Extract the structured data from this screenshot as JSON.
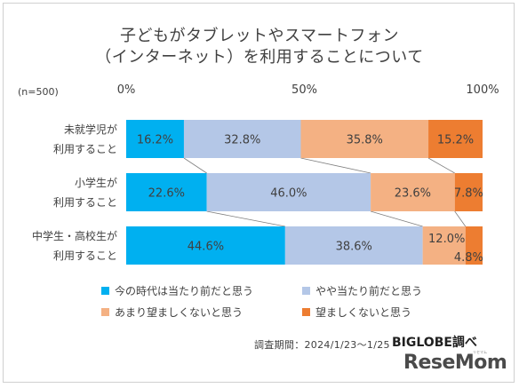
{
  "title": {
    "line1": "子どもがタブレットやスマートフォン",
    "line2": "（インターネット）を利用することについて"
  },
  "sample": "(n=500)",
  "source": "調査期間：2024/1/23〜1/25",
  "brand": "BIGLOBE調べ",
  "logo": "ReseMom",
  "logo_ruby": "リセマム",
  "chart_data": {
    "type": "bar",
    "orientation": "horizontal",
    "stacked": true,
    "percent": true,
    "xlim": [
      0,
      100
    ],
    "ticks": [
      "0%",
      "50%",
      "100%"
    ],
    "tick_values": [
      0,
      50,
      100
    ],
    "categories": [
      [
        "未就学児が",
        "利用すること"
      ],
      [
        "小学生が",
        "利用すること"
      ],
      [
        "中学生・高校生が",
        "利用すること"
      ]
    ],
    "series": [
      {
        "name": "今の時代は当たり前だと思う",
        "color": "#00b0f0",
        "values": [
          16.2,
          22.6,
          44.6
        ],
        "labels": [
          "16.2%",
          "22.6%",
          "44.6%"
        ]
      },
      {
        "name": "やや当たり前だと思う",
        "color": "#b4c7e7",
        "values": [
          32.8,
          46.0,
          38.6
        ],
        "labels": [
          "32.8%",
          "46.0%",
          "38.6%"
        ]
      },
      {
        "name": "あまり望ましくないと思う",
        "color": "#f4b183",
        "values": [
          35.8,
          23.6,
          12.0
        ],
        "labels": [
          "35.8%",
          "23.6%",
          "12.0%"
        ]
      },
      {
        "name": "望ましくないと思う",
        "color": "#ed7d31",
        "values": [
          15.2,
          7.8,
          4.8
        ],
        "labels": [
          "15.2%",
          "7.8%",
          "4.8%"
        ]
      }
    ],
    "grid": false,
    "legend_position": "bottom"
  }
}
